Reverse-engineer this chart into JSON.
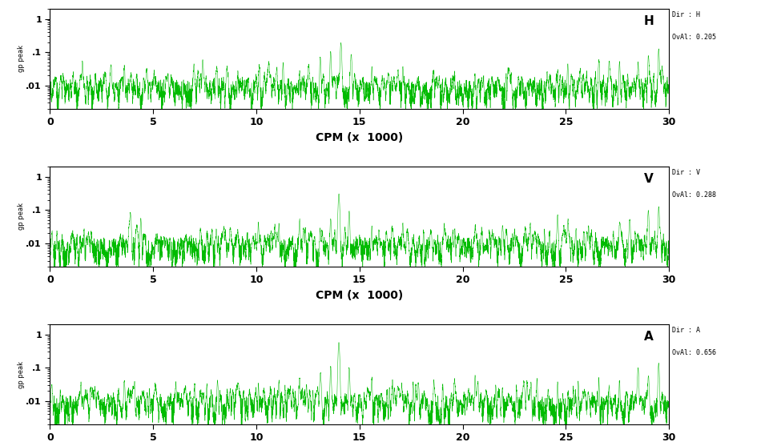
{
  "panels": [
    {
      "label": "H",
      "dir_text": "Dir : H",
      "oval_text": "OvAl: 0.205",
      "seed": 42
    },
    {
      "label": "V",
      "dir_text": "Dir : V",
      "oval_text": "OvAl: 0.288",
      "seed": 123
    },
    {
      "label": "A",
      "dir_text": "Dir : A",
      "oval_text": "OvAl: 0.656",
      "seed": 77
    }
  ],
  "line_color": "#00BB00",
  "bg_color": "#ffffff",
  "xlim": [
    0,
    30
  ],
  "ylim_log": [
    0.002,
    2.0
  ],
  "xticks": [
    0,
    5,
    10,
    15,
    20,
    25,
    30
  ],
  "xlabel": "CPM (x  1000)",
  "yticks": [
    0.01,
    0.1,
    1.0
  ],
  "ytick_labels": [
    ".01",
    ".1",
    "1"
  ],
  "n_points": 6000,
  "baseline": 0.003,
  "annotation_fontsize": 6.5
}
